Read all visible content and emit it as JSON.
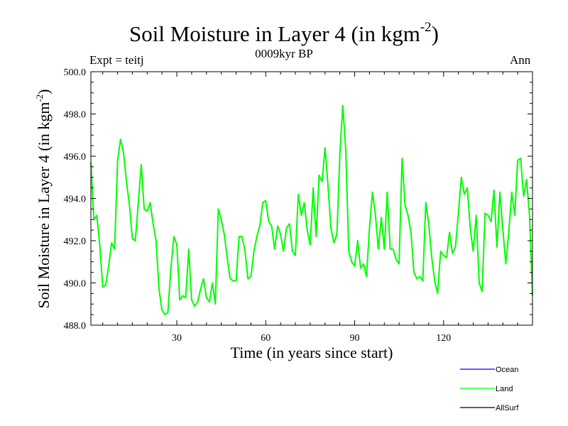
{
  "chart_data": {
    "type": "line",
    "title": "Soil Moisture in Layer 4 (in kgm",
    "title_exp": "-2",
    "title_close": ")",
    "subtitle": "0009kyr BP",
    "left_label": "Expt = teitj",
    "right_label": "Ann",
    "xlabel": "Time (in years since start)",
    "ylabel": "Soil Moisture in Layer 4 (in kgm",
    "ylabel_exp": "-2",
    "ylabel_close": ")",
    "xlim": [
      1,
      150
    ],
    "ylim": [
      488.0,
      500.0
    ],
    "xticks": [
      30,
      60,
      90,
      120
    ],
    "xtick_labels": [
      "30",
      "60",
      "90",
      "120"
    ],
    "yticks": [
      488.0,
      490.0,
      492.0,
      494.0,
      496.0,
      498.0,
      500.0
    ],
    "ytick_labels": [
      "488.0",
      "490.0",
      "492.0",
      "494.0",
      "496.0",
      "498.0",
      "500.0"
    ],
    "legend_position": "bottom-right",
    "series": [
      {
        "name": "Ocean",
        "color": "#0000ff",
        "values": []
      },
      {
        "name": "Land",
        "color": "#00ff00",
        "x_start": 1,
        "x_step": 1,
        "values": [
          495.7,
          493.0,
          493.2,
          491.8,
          489.8,
          489.9,
          490.8,
          491.9,
          491.6,
          495.8,
          496.8,
          496.2,
          494.8,
          493.7,
          492.1,
          492.0,
          493.8,
          495.6,
          493.5,
          493.4,
          493.8,
          492.8,
          492.0,
          489.7,
          488.7,
          488.5,
          488.6,
          490.7,
          492.2,
          491.8,
          489.2,
          489.4,
          489.3,
          491.6,
          489.2,
          488.9,
          489.1,
          489.7,
          490.2,
          489.3,
          489.1,
          490.0,
          489.0,
          493.5,
          493.0,
          492.3,
          491.2,
          490.2,
          490.1,
          490.1,
          492.2,
          492.2,
          491.5,
          490.2,
          490.3,
          491.5,
          492.2,
          492.7,
          493.8,
          493.9,
          492.9,
          492.7,
          491.6,
          492.7,
          492.3,
          491.5,
          492.6,
          492.8,
          491.5,
          491.3,
          494.2,
          493.2,
          493.8,
          492.5,
          491.8,
          494.5,
          492.2,
          495.1,
          494.8,
          496.4,
          494.6,
          492.6,
          491.9,
          492.3,
          496.1,
          498.4,
          496.3,
          491.5,
          491.0,
          490.8,
          492.0,
          490.7,
          490.9,
          490.3,
          492.6,
          494.3,
          493.2,
          491.6,
          493.1,
          491.6,
          494.3,
          491.6,
          491.6,
          491.1,
          490.9,
          495.9,
          493.7,
          493.2,
          492.4,
          490.5,
          490.2,
          490.3,
          490.1,
          493.8,
          492.8,
          491.2,
          490.1,
          489.5,
          491.5,
          491.3,
          491.2,
          492.4,
          491.4,
          491.7,
          493.3,
          495.0,
          494.2,
          494.5,
          492.6,
          491.5,
          493.2,
          490.0,
          489.6,
          493.3,
          493.2,
          492.9,
          494.4,
          491.7,
          494.3,
          492.5,
          490.9,
          492.4,
          494.3,
          493.2,
          495.8,
          495.9,
          494.1,
          494.9,
          493.2,
          489.4
        ]
      },
      {
        "name": "AllSurf",
        "color": "#000000",
        "values": []
      }
    ]
  }
}
